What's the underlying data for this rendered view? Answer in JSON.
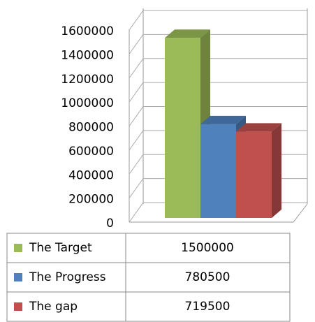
{
  "chart_data": {
    "type": "bar",
    "series": [
      {
        "name": "The Target",
        "color": "#9bbb59",
        "values": [
          1500000
        ]
      },
      {
        "name": "The Progress",
        "color": "#4f81bd",
        "values": [
          780500
        ]
      },
      {
        "name": "The gap",
        "color": "#c0504d",
        "values": [
          719500
        ]
      }
    ],
    "ylim": [
      0,
      1600000
    ],
    "yticks": [
      0,
      200000,
      400000,
      600000,
      800000,
      1000000,
      1200000,
      1400000,
      1600000
    ],
    "grid": true
  }
}
